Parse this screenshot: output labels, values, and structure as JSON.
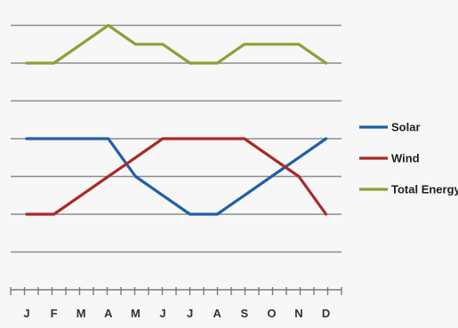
{
  "chart_data": {
    "type": "line",
    "categories": [
      "J",
      "F",
      "M",
      "A",
      "M",
      "J",
      "J",
      "A",
      "S",
      "O",
      "N",
      "D"
    ],
    "series": [
      {
        "name": "Solar",
        "color": "#1f5fa8",
        "values": [
          4,
          4,
          4,
          4,
          3,
          2.5,
          2,
          2,
          2.5,
          3,
          3.5,
          4
        ]
      },
      {
        "name": "Wind",
        "color": "#a82a25",
        "values": [
          2,
          2,
          2.5,
          3,
          3.5,
          4,
          4,
          4,
          4,
          3.5,
          3,
          2
        ]
      },
      {
        "name": "Total Energy",
        "color": "#8aa236",
        "values": [
          6,
          6,
          6.5,
          7,
          6.5,
          6.5,
          6,
          6,
          6.5,
          6.5,
          6.5,
          6
        ]
      }
    ],
    "ylim": [
      0,
      7.7
    ],
    "grid": true,
    "legend_position": "right",
    "title": "",
    "xlabel": "",
    "ylabel": ""
  }
}
